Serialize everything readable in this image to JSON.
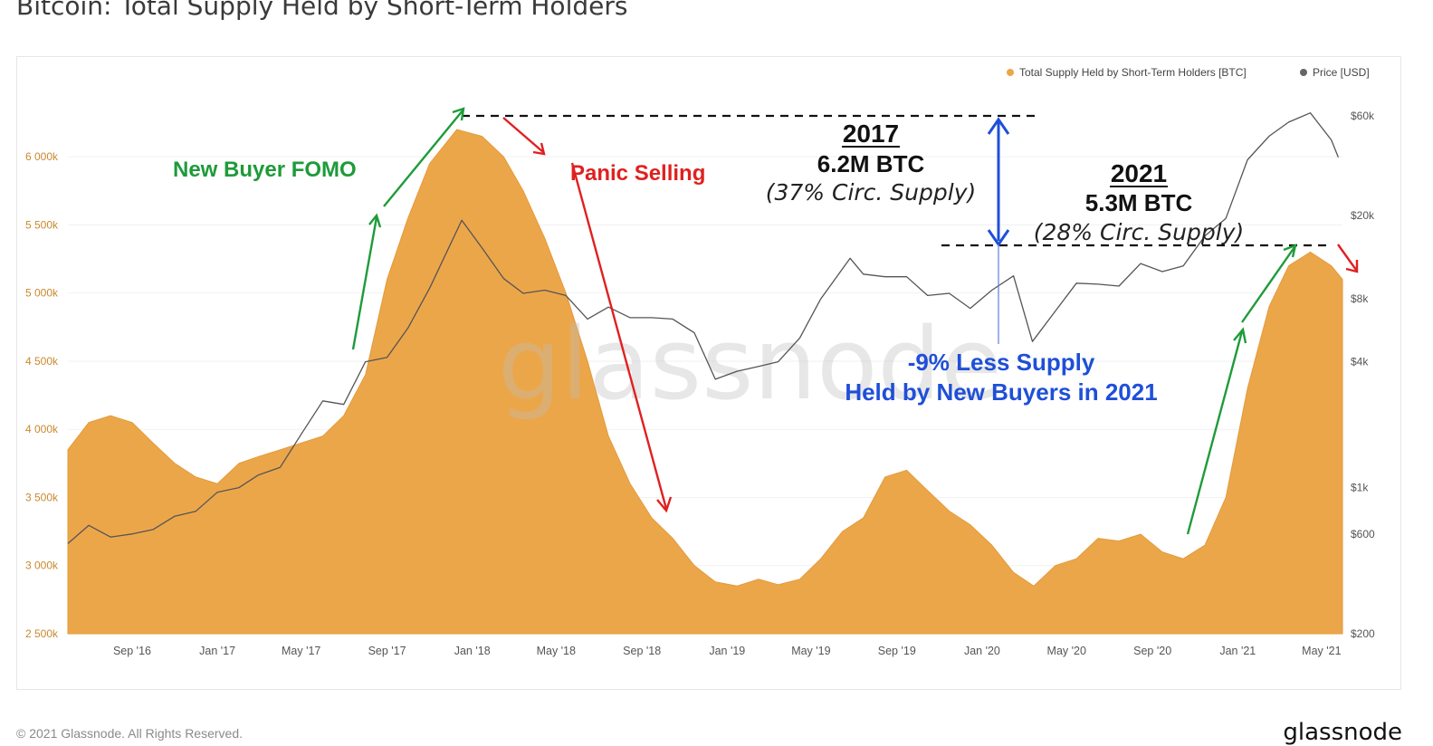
{
  "page": {
    "title": "Bitcoin: Total Supply Held by Short-Term Holders",
    "footer_copyright": "© 2021 Glassnode. All Rights Reserved.",
    "brand": "glassnode",
    "watermark": "glassnode"
  },
  "colors": {
    "supply": "#eca64a",
    "price": "#555555",
    "green": "#1e9b3a",
    "red": "#e02020",
    "blue": "#1f4fd8"
  },
  "chart_data": {
    "type": "area",
    "title": "Bitcoin: Total Supply Held by Short-Term Holders",
    "legend_position": "top-right",
    "legend": [
      {
        "label": "Total Supply Held by Short-Term Holders [BTC]",
        "color": "#eca64a"
      },
      {
        "label": "Price [USD]",
        "color": "#666666"
      }
    ],
    "x_ticks": [
      "Sep '16",
      "Jan '17",
      "May '17",
      "Sep '17",
      "Jan '18",
      "May '18",
      "Sep '18",
      "Jan '19",
      "May '19",
      "Sep '19",
      "Jan '20",
      "May '20",
      "Sep '20",
      "Jan '21",
      "May '21"
    ],
    "y_left_ticks": [
      "6 000k",
      "5 500k",
      "5 000k",
      "4 500k",
      "4 000k",
      "3 500k",
      "3 000k",
      "2 500k"
    ],
    "y_left_values": [
      6000000,
      5500000,
      5000000,
      4500000,
      4000000,
      3500000,
      3000000,
      2500000
    ],
    "y_left_range": [
      2500000,
      6300000
    ],
    "y_right_ticks": [
      "$60k",
      "$20k",
      "$8k",
      "$4k",
      "$1k",
      "$600",
      "$200"
    ],
    "y_right_values": [
      60000,
      20000,
      8000,
      4000,
      1000,
      600,
      200
    ],
    "y_right_scale": "log",
    "y_right_range": [
      200,
      60000
    ],
    "x_range": [
      "2016-06-01",
      "2021-05-31"
    ],
    "series": [
      {
        "name": "Total Supply Held by Short-Term Holders [BTC]",
        "points": [
          [
            "2016-06-01",
            3850000
          ],
          [
            "2016-07-01",
            4050000
          ],
          [
            "2016-08-01",
            4100000
          ],
          [
            "2016-09-01",
            4050000
          ],
          [
            "2016-10-01",
            3900000
          ],
          [
            "2016-11-01",
            3750000
          ],
          [
            "2016-12-01",
            3650000
          ],
          [
            "2017-01-01",
            3600000
          ],
          [
            "2017-02-01",
            3750000
          ],
          [
            "2017-03-01",
            3800000
          ],
          [
            "2017-04-01",
            3850000
          ],
          [
            "2017-05-01",
            3900000
          ],
          [
            "2017-06-01",
            3950000
          ],
          [
            "2017-07-01",
            4100000
          ],
          [
            "2017-08-01",
            4400000
          ],
          [
            "2017-09-01",
            5100000
          ],
          [
            "2017-10-01",
            5550000
          ],
          [
            "2017-11-01",
            5950000
          ],
          [
            "2017-12-10",
            6200000
          ],
          [
            "2018-01-15",
            6150000
          ],
          [
            "2018-02-15",
            6000000
          ],
          [
            "2018-03-15",
            5750000
          ],
          [
            "2018-04-15",
            5400000
          ],
          [
            "2018-05-15",
            5000000
          ],
          [
            "2018-06-15",
            4500000
          ],
          [
            "2018-07-15",
            3950000
          ],
          [
            "2018-08-15",
            3600000
          ],
          [
            "2018-09-15",
            3350000
          ],
          [
            "2018-10-15",
            3200000
          ],
          [
            "2018-11-15",
            3000000
          ],
          [
            "2018-12-15",
            2880000
          ],
          [
            "2019-01-15",
            2850000
          ],
          [
            "2019-02-15",
            2900000
          ],
          [
            "2019-03-15",
            2860000
          ],
          [
            "2019-04-15",
            2900000
          ],
          [
            "2019-05-15",
            3050000
          ],
          [
            "2019-06-15",
            3250000
          ],
          [
            "2019-07-15",
            3350000
          ],
          [
            "2019-08-15",
            3650000
          ],
          [
            "2019-09-15",
            3700000
          ],
          [
            "2019-10-15",
            3550000
          ],
          [
            "2019-11-15",
            3400000
          ],
          [
            "2019-12-15",
            3300000
          ],
          [
            "2020-01-15",
            3150000
          ],
          [
            "2020-02-15",
            2950000
          ],
          [
            "2020-03-15",
            2850000
          ],
          [
            "2020-04-15",
            3000000
          ],
          [
            "2020-05-15",
            3050000
          ],
          [
            "2020-06-15",
            3200000
          ],
          [
            "2020-07-15",
            3180000
          ],
          [
            "2020-08-15",
            3230000
          ],
          [
            "2020-09-15",
            3100000
          ],
          [
            "2020-10-15",
            3050000
          ],
          [
            "2020-11-15",
            3150000
          ],
          [
            "2020-12-15",
            3500000
          ],
          [
            "2021-01-15",
            4300000
          ],
          [
            "2021-02-15",
            4900000
          ],
          [
            "2021-03-15",
            5200000
          ],
          [
            "2021-04-15",
            5300000
          ],
          [
            "2021-05-15",
            5200000
          ],
          [
            "2021-05-31",
            5100000
          ]
        ]
      },
      {
        "name": "Price [USD]",
        "points": [
          [
            "2016-06-01",
            540
          ],
          [
            "2016-07-01",
            660
          ],
          [
            "2016-08-01",
            580
          ],
          [
            "2016-09-01",
            600
          ],
          [
            "2016-10-01",
            630
          ],
          [
            "2016-11-01",
            730
          ],
          [
            "2016-12-01",
            770
          ],
          [
            "2017-01-01",
            950
          ],
          [
            "2017-02-01",
            1000
          ],
          [
            "2017-03-01",
            1150
          ],
          [
            "2017-04-01",
            1250
          ],
          [
            "2017-05-01",
            1800
          ],
          [
            "2017-06-01",
            2600
          ],
          [
            "2017-07-01",
            2500
          ],
          [
            "2017-08-01",
            4000
          ],
          [
            "2017-09-01",
            4200
          ],
          [
            "2017-10-01",
            5800
          ],
          [
            "2017-11-01",
            9000
          ],
          [
            "2017-12-17",
            19000
          ],
          [
            "2018-01-15",
            14000
          ],
          [
            "2018-02-15",
            10000
          ],
          [
            "2018-03-15",
            8500
          ],
          [
            "2018-04-15",
            8800
          ],
          [
            "2018-05-15",
            8300
          ],
          [
            "2018-06-15",
            6400
          ],
          [
            "2018-07-15",
            7300
          ],
          [
            "2018-08-15",
            6500
          ],
          [
            "2018-09-15",
            6500
          ],
          [
            "2018-10-15",
            6400
          ],
          [
            "2018-11-15",
            5500
          ],
          [
            "2018-12-15",
            3300
          ],
          [
            "2019-01-15",
            3600
          ],
          [
            "2019-02-15",
            3800
          ],
          [
            "2019-03-15",
            4000
          ],
          [
            "2019-04-15",
            5200
          ],
          [
            "2019-05-15",
            8000
          ],
          [
            "2019-06-26",
            12500
          ],
          [
            "2019-07-15",
            10500
          ],
          [
            "2019-08-15",
            10200
          ],
          [
            "2019-09-15",
            10200
          ],
          [
            "2019-10-15",
            8300
          ],
          [
            "2019-11-15",
            8500
          ],
          [
            "2019-12-15",
            7200
          ],
          [
            "2020-01-15",
            8800
          ],
          [
            "2020-02-15",
            10300
          ],
          [
            "2020-03-13",
            5000
          ],
          [
            "2020-04-15",
            7000
          ],
          [
            "2020-05-15",
            9500
          ],
          [
            "2020-06-15",
            9400
          ],
          [
            "2020-07-15",
            9200
          ],
          [
            "2020-08-15",
            11800
          ],
          [
            "2020-09-15",
            10800
          ],
          [
            "2020-10-15",
            11500
          ],
          [
            "2020-11-15",
            16000
          ],
          [
            "2020-12-15",
            19400
          ],
          [
            "2021-01-15",
            37000
          ],
          [
            "2021-02-15",
            48000
          ],
          [
            "2021-03-15",
            56000
          ],
          [
            "2021-04-15",
            62000
          ],
          [
            "2021-05-15",
            46000
          ],
          [
            "2021-05-25",
            38000
          ]
        ]
      }
    ],
    "annotations": {
      "new_buyer_fomo": "New Buyer FOMO",
      "panic_selling": "Panic Selling",
      "peak_2017_year": "2017",
      "peak_2017_btc": "6.2M BTC",
      "peak_2017_pct": "(37% Circ. Supply)",
      "peak_2021_year": "2021",
      "peak_2021_btc": "5.3M BTC",
      "peak_2021_pct": "(28% Circ. Supply)",
      "less_supply_line1": "-9% Less Supply",
      "less_supply_line2": "Held by New Buyers in 2021"
    }
  }
}
